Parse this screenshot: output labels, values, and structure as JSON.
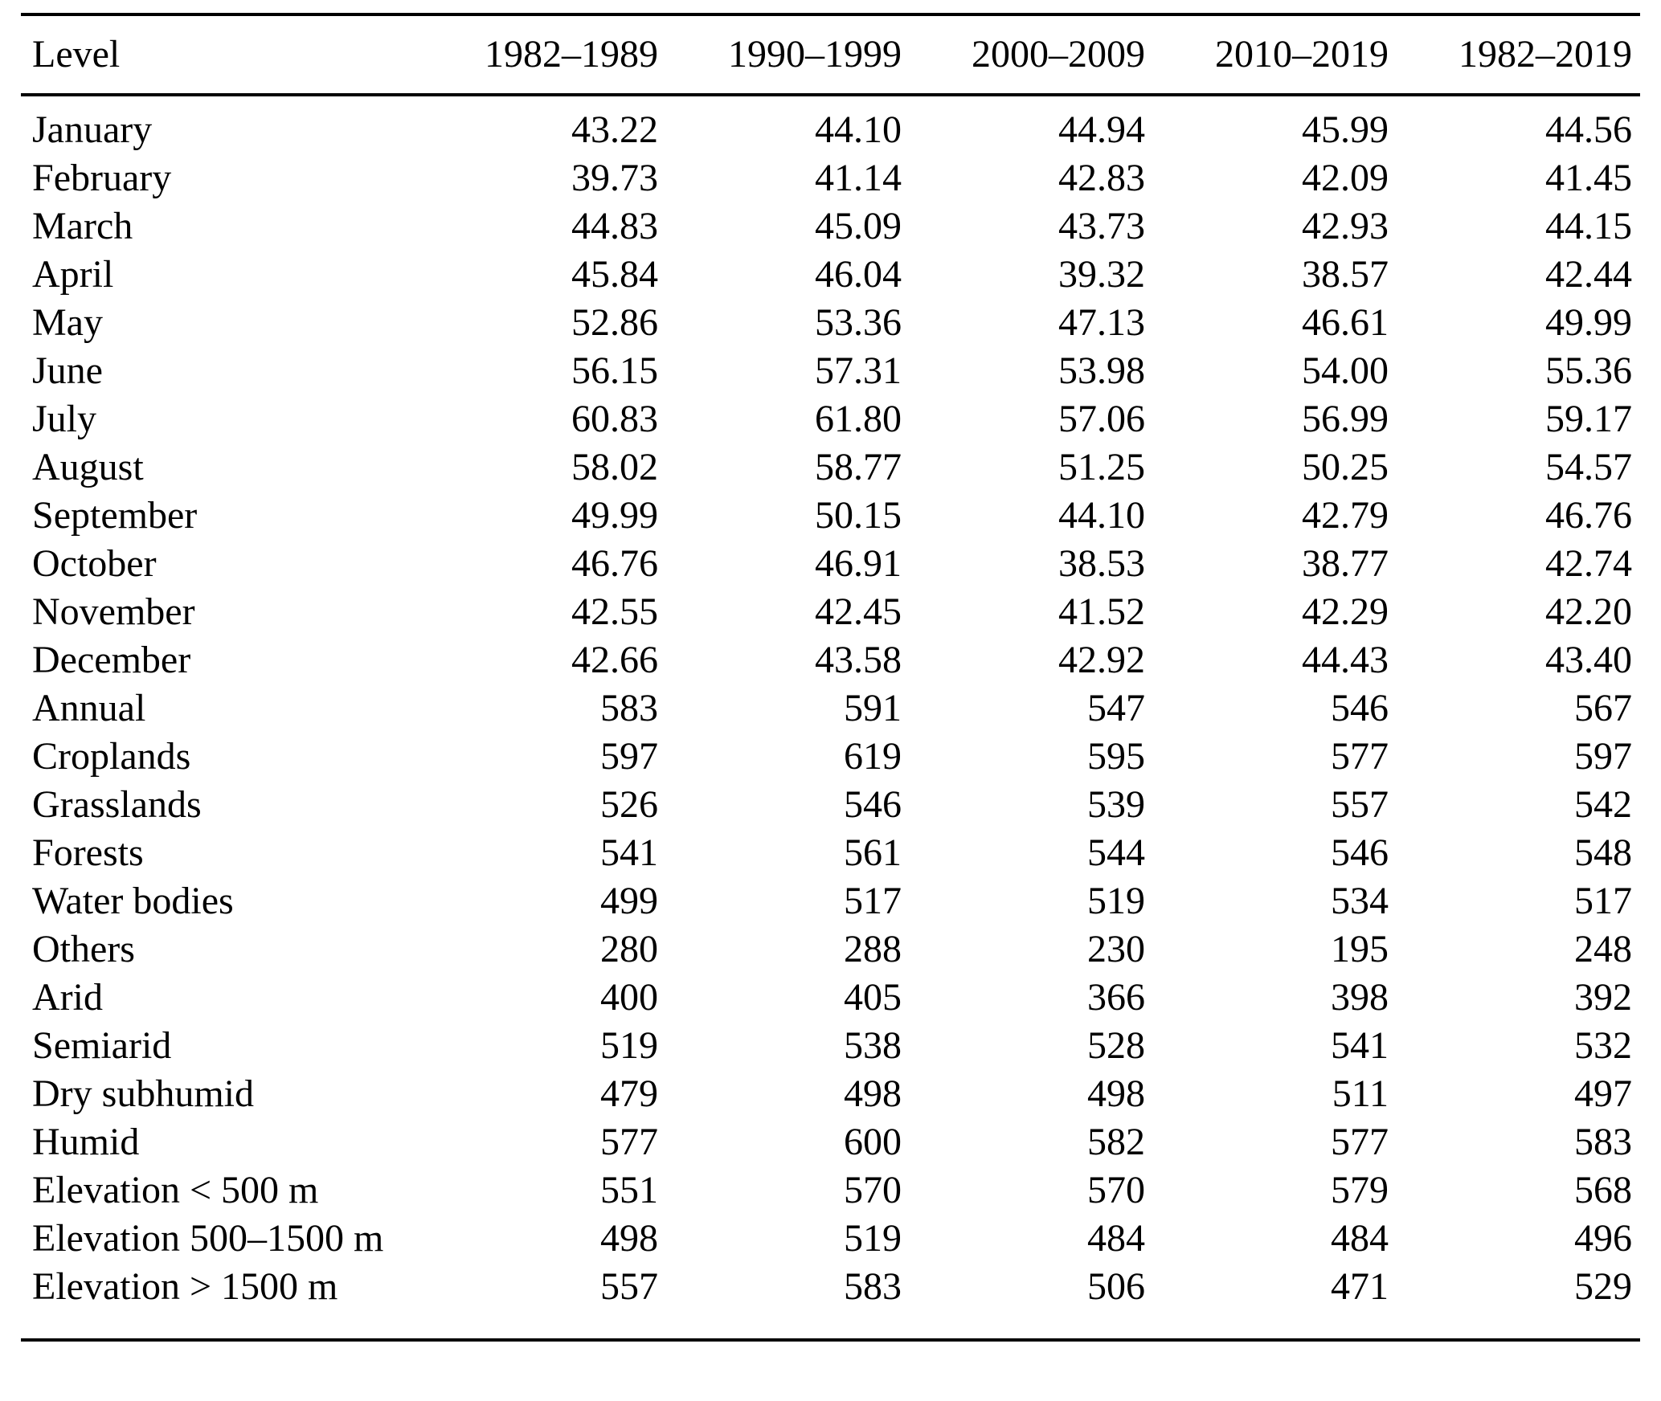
{
  "table": {
    "columns": [
      "Level",
      "1982–1989",
      "1990–1999",
      "2000–2009",
      "2010–2019",
      "1982–2019"
    ],
    "rows": [
      {
        "label": "January",
        "values": [
          "43.22",
          "44.10",
          "44.94",
          "45.99",
          "44.56"
        ]
      },
      {
        "label": "February",
        "values": [
          "39.73",
          "41.14",
          "42.83",
          "42.09",
          "41.45"
        ]
      },
      {
        "label": "March",
        "values": [
          "44.83",
          "45.09",
          "43.73",
          "42.93",
          "44.15"
        ]
      },
      {
        "label": "April",
        "values": [
          "45.84",
          "46.04",
          "39.32",
          "38.57",
          "42.44"
        ]
      },
      {
        "label": "May",
        "values": [
          "52.86",
          "53.36",
          "47.13",
          "46.61",
          "49.99"
        ]
      },
      {
        "label": "June",
        "values": [
          "56.15",
          "57.31",
          "53.98",
          "54.00",
          "55.36"
        ]
      },
      {
        "label": "July",
        "values": [
          "60.83",
          "61.80",
          "57.06",
          "56.99",
          "59.17"
        ]
      },
      {
        "label": "August",
        "values": [
          "58.02",
          "58.77",
          "51.25",
          "50.25",
          "54.57"
        ]
      },
      {
        "label": "September",
        "values": [
          "49.99",
          "50.15",
          "44.10",
          "42.79",
          "46.76"
        ]
      },
      {
        "label": "October",
        "values": [
          "46.76",
          "46.91",
          "38.53",
          "38.77",
          "42.74"
        ]
      },
      {
        "label": "November",
        "values": [
          "42.55",
          "42.45",
          "41.52",
          "42.29",
          "42.20"
        ]
      },
      {
        "label": "December",
        "values": [
          "42.66",
          "43.58",
          "42.92",
          "44.43",
          "43.40"
        ]
      },
      {
        "label": "Annual",
        "values": [
          "583",
          "591",
          "547",
          "546",
          "567"
        ]
      },
      {
        "label": "Croplands",
        "values": [
          "597",
          "619",
          "595",
          "577",
          "597"
        ]
      },
      {
        "label": "Grasslands",
        "values": [
          "526",
          "546",
          "539",
          "557",
          "542"
        ]
      },
      {
        "label": "Forests",
        "values": [
          "541",
          "561",
          "544",
          "546",
          "548"
        ]
      },
      {
        "label": "Water bodies",
        "values": [
          "499",
          "517",
          "519",
          "534",
          "517"
        ]
      },
      {
        "label": "Others",
        "values": [
          "280",
          "288",
          "230",
          "195",
          "248"
        ]
      },
      {
        "label": "Arid",
        "values": [
          "400",
          "405",
          "366",
          "398",
          "392"
        ]
      },
      {
        "label": "Semiarid",
        "values": [
          "519",
          "538",
          "528",
          "541",
          "532"
        ]
      },
      {
        "label": "Dry subhumid",
        "values": [
          "479",
          "498",
          "498",
          "511",
          "497"
        ]
      },
      {
        "label": "Humid",
        "values": [
          "577",
          "600",
          "582",
          "577",
          "583"
        ]
      },
      {
        "label": "Elevation < 500 m",
        "values": [
          "551",
          "570",
          "570",
          "579",
          "568"
        ]
      },
      {
        "label": "Elevation 500–1500 m",
        "values": [
          "498",
          "519",
          "484",
          "484",
          "496"
        ]
      },
      {
        "label": "Elevation > 1500 m",
        "values": [
          "557",
          "583",
          "506",
          "471",
          "529"
        ]
      }
    ]
  },
  "chart_data": {
    "type": "table",
    "title": "",
    "columns": [
      "Level",
      "1982–1989",
      "1990–1999",
      "2000–2009",
      "2010–2019",
      "1982–2019"
    ],
    "row_labels": [
      "January",
      "February",
      "March",
      "April",
      "May",
      "June",
      "July",
      "August",
      "September",
      "October",
      "November",
      "December",
      "Annual",
      "Croplands",
      "Grasslands",
      "Forests",
      "Water bodies",
      "Others",
      "Arid",
      "Semiarid",
      "Dry subhumid",
      "Humid",
      "Elevation < 500 m",
      "Elevation 500–1500 m",
      "Elevation > 1500 m"
    ],
    "series": [
      {
        "name": "1982–1989",
        "values": [
          43.22,
          39.73,
          44.83,
          45.84,
          52.86,
          56.15,
          60.83,
          58.02,
          49.99,
          46.76,
          42.55,
          42.66,
          583,
          597,
          526,
          541,
          499,
          280,
          400,
          519,
          479,
          577,
          551,
          498,
          557
        ]
      },
      {
        "name": "1990–1999",
        "values": [
          44.1,
          41.14,
          45.09,
          46.04,
          53.36,
          57.31,
          61.8,
          58.77,
          50.15,
          46.91,
          42.45,
          43.58,
          591,
          619,
          546,
          561,
          517,
          288,
          405,
          538,
          498,
          600,
          570,
          519,
          583
        ]
      },
      {
        "name": "2000–2009",
        "values": [
          44.94,
          42.83,
          43.73,
          39.32,
          47.13,
          53.98,
          57.06,
          51.25,
          44.1,
          38.53,
          41.52,
          42.92,
          547,
          595,
          539,
          544,
          519,
          230,
          366,
          528,
          498,
          582,
          570,
          484,
          506
        ]
      },
      {
        "name": "2010–2019",
        "values": [
          45.99,
          42.09,
          42.93,
          38.57,
          46.61,
          54.0,
          56.99,
          50.25,
          42.79,
          38.77,
          42.29,
          44.43,
          546,
          577,
          557,
          546,
          534,
          195,
          398,
          541,
          511,
          577,
          579,
          484,
          471
        ]
      },
      {
        "name": "1982–2019",
        "values": [
          44.56,
          41.45,
          44.15,
          42.44,
          49.99,
          55.36,
          59.17,
          54.57,
          46.76,
          42.74,
          42.2,
          43.4,
          567,
          597,
          542,
          548,
          517,
          248,
          392,
          532,
          497,
          583,
          568,
          496,
          529
        ]
      }
    ]
  }
}
